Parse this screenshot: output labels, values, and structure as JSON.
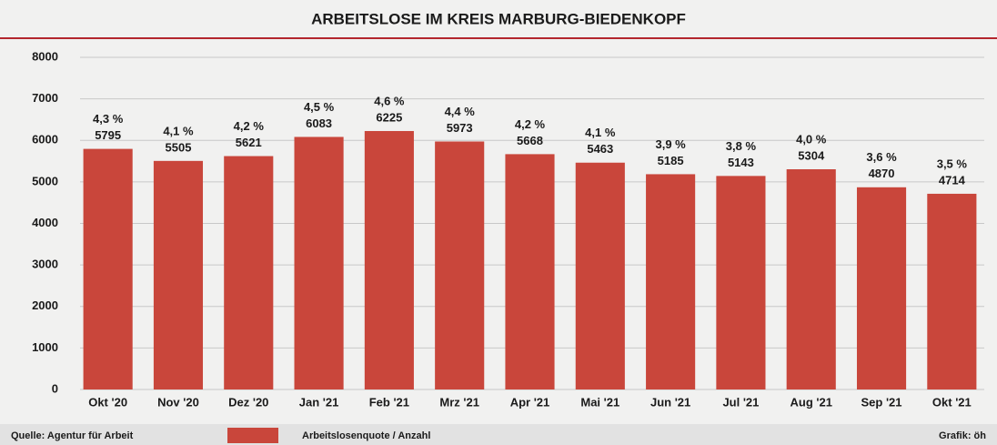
{
  "chart_data": {
    "type": "bar",
    "title": "ARBEITSLOSE IM KREIS MARBURG-BIEDENKOPF",
    "categories": [
      "Okt '20",
      "Nov '20",
      "Dez '20",
      "Jan '21",
      "Feb '21",
      "Mrz '21",
      "Apr '21",
      "Mai '21",
      "Jun '21",
      "Jul '21",
      "Aug '21",
      "Sep '21",
      "Okt '21"
    ],
    "values": [
      5795,
      5505,
      5621,
      6083,
      6225,
      5973,
      5668,
      5463,
      5185,
      5143,
      5304,
      4870,
      4714
    ],
    "rate_labels": [
      "4,3 %",
      "4,1 %",
      "4,2 %",
      "4,5 %",
      "4,6 %",
      "4,4 %",
      "4,2 %",
      "4,1 %",
      "3,9 %",
      "3,8 %",
      "4,0 %",
      "3,6 %",
      "3,5 %"
    ],
    "color": "#c9463b",
    "legend": "Arbeitslosenquote / Anzahl",
    "source": "Quelle: Agentur für Arbeit",
    "credit": "Grafik: öh",
    "ylim": [
      0,
      8000
    ],
    "yticks": [
      0,
      1000,
      2000,
      3000,
      4000,
      5000,
      6000,
      7000,
      8000
    ],
    "grid": true
  }
}
